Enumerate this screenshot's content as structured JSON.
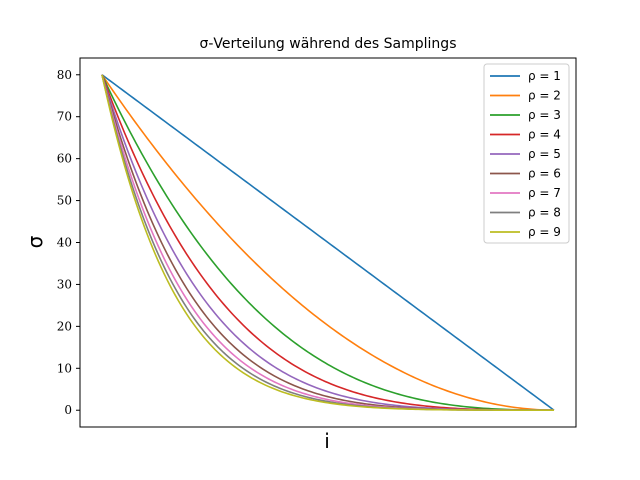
{
  "chart_data": {
    "type": "line",
    "title": "σ-Verteilung während des Samplings",
    "xlabel": "i",
    "ylabel": "σ",
    "xticks": [],
    "yticks": [
      0,
      10,
      20,
      30,
      40,
      50,
      60,
      70,
      80
    ],
    "xlim": [
      0,
      1
    ],
    "ylim": [
      -4,
      84
    ],
    "grid": false,
    "legend_position": "top-right",
    "sigma_max": 80,
    "sigma_min": 0.002,
    "series": [
      {
        "name": "ρ = 1",
        "rho": 1,
        "color": "#1f77b4"
      },
      {
        "name": "ρ = 2",
        "rho": 2,
        "color": "#ff7f0e"
      },
      {
        "name": "ρ = 3",
        "rho": 3,
        "color": "#2ca02c"
      },
      {
        "name": "ρ = 4",
        "rho": 4,
        "color": "#d62728"
      },
      {
        "name": "ρ = 5",
        "rho": 5,
        "color": "#9467bd"
      },
      {
        "name": "ρ = 6",
        "rho": 6,
        "color": "#8c564b"
      },
      {
        "name": "ρ = 7",
        "rho": 7,
        "color": "#e377c2"
      },
      {
        "name": "ρ = 8",
        "rho": 8,
        "color": "#7f7f7f"
      },
      {
        "name": "ρ = 9",
        "rho": 9,
        "color": "#bcbd22"
      }
    ]
  }
}
